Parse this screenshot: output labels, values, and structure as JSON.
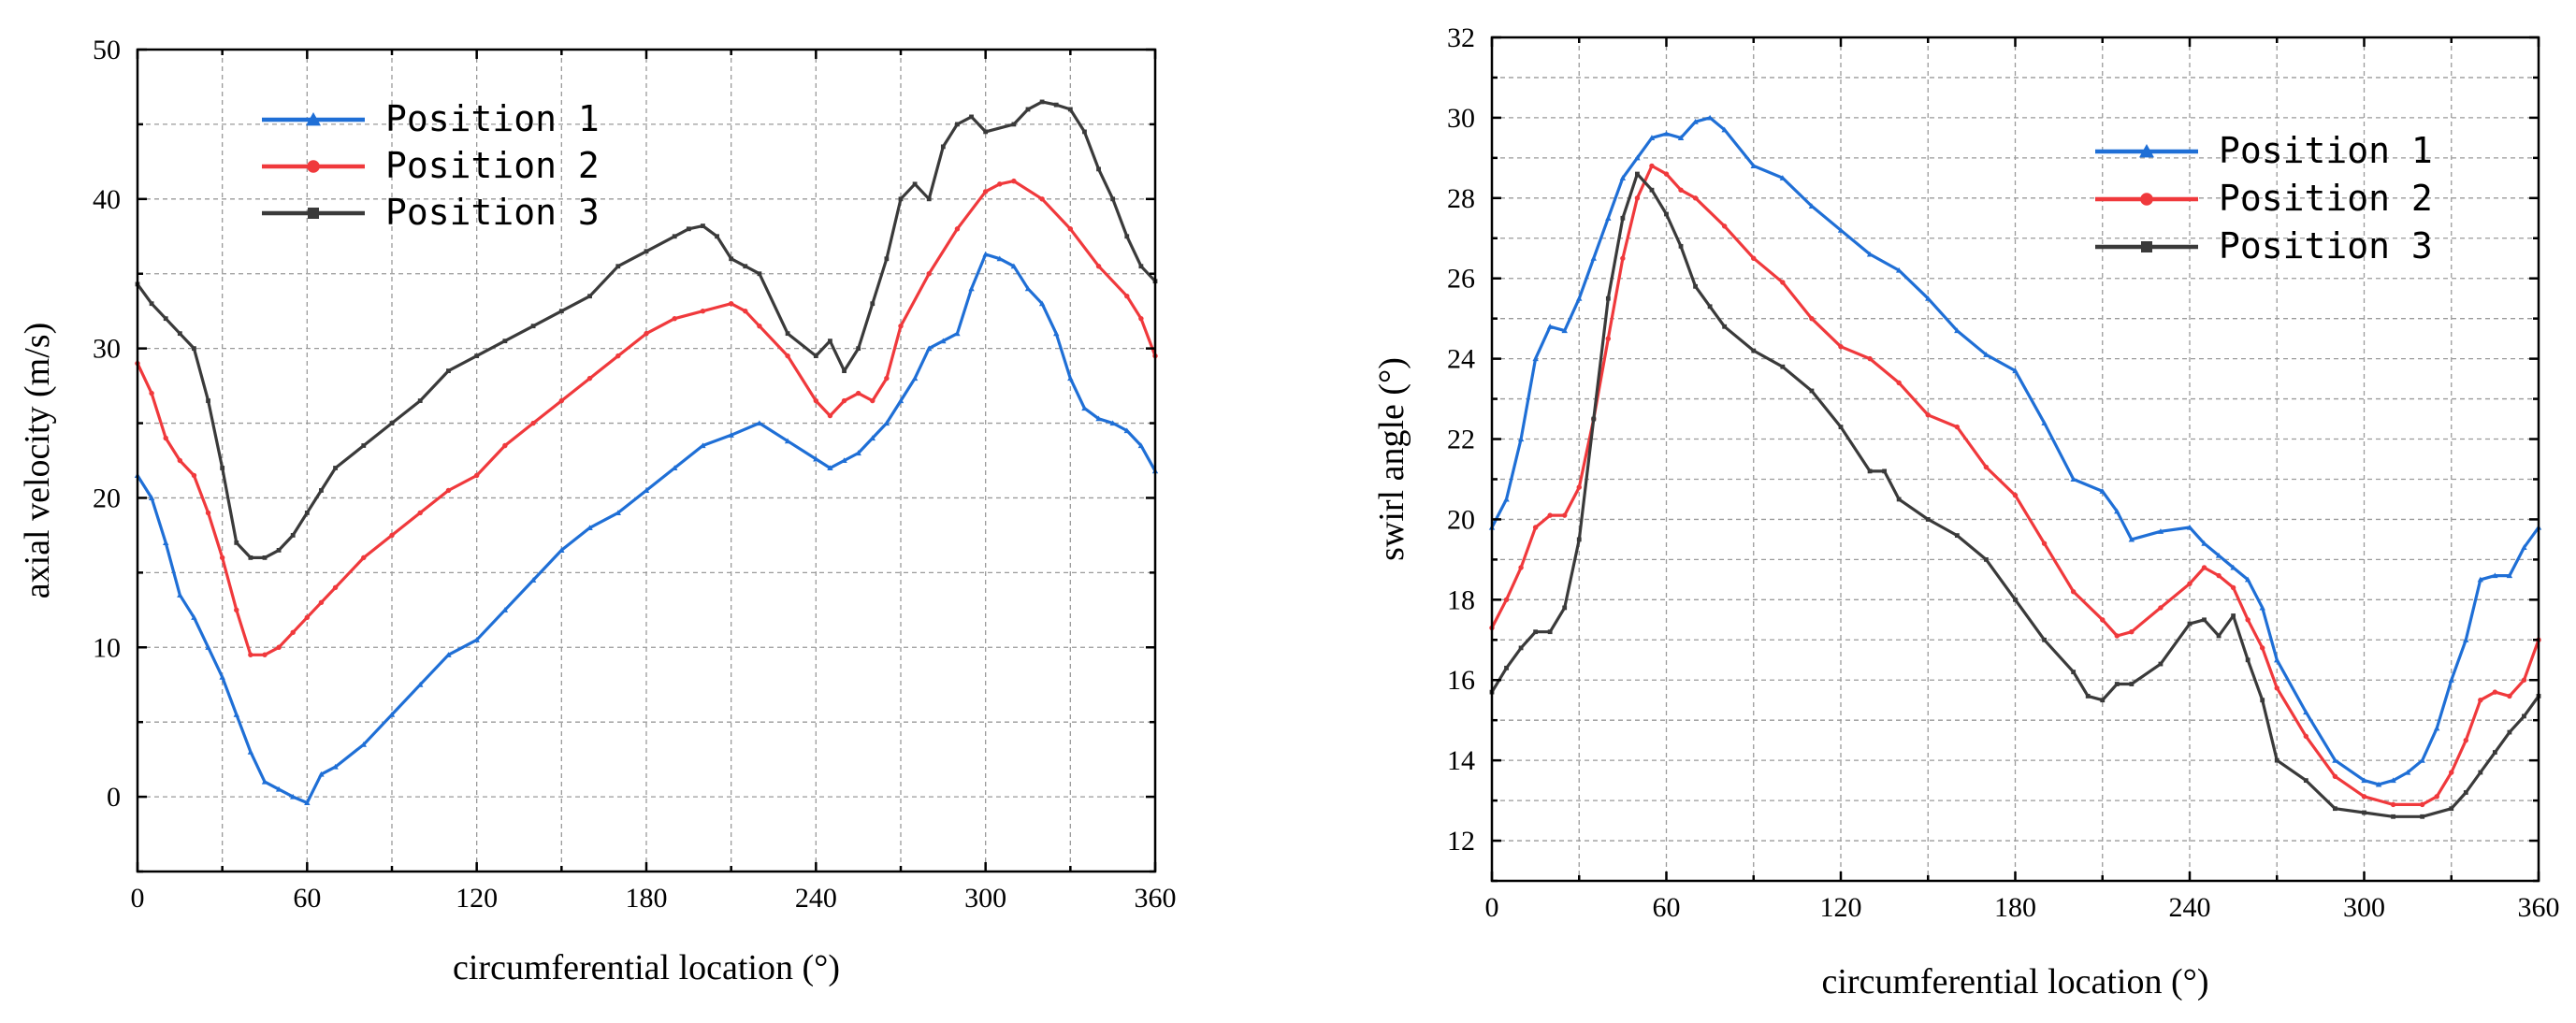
{
  "chart_data": [
    {
      "type": "line",
      "xlabel": "circumferential location (°)",
      "ylabel": "axial velocity (m/s)",
      "xlim": [
        0,
        360
      ],
      "ylim": [
        -5,
        50
      ],
      "xticks": [
        0,
        60,
        120,
        180,
        240,
        300,
        360
      ],
      "yticks": [
        0,
        10,
        20,
        30,
        40,
        50
      ],
      "x_minor_step": 30,
      "y_minor_step": 5,
      "grid": true,
      "legend_position": "top-left",
      "series": [
        {
          "name": "Position 1",
          "color": "#1f6fd6",
          "marker": "triangle",
          "x": [
            0,
            5,
            10,
            15,
            20,
            25,
            30,
            35,
            40,
            45,
            50,
            55,
            60,
            65,
            70,
            80,
            90,
            100,
            110,
            120,
            130,
            140,
            150,
            160,
            170,
            180,
            190,
            200,
            210,
            220,
            230,
            240,
            245,
            250,
            255,
            260,
            265,
            270,
            275,
            280,
            285,
            290,
            295,
            300,
            305,
            310,
            315,
            320,
            325,
            330,
            335,
            340,
            345,
            350,
            355,
            360
          ],
          "y": [
            21.5,
            20,
            17,
            13.5,
            12,
            10,
            8,
            5.5,
            3,
            1,
            0.5,
            0,
            -0.4,
            1.5,
            2,
            3.5,
            5.5,
            7.5,
            9.5,
            10.5,
            12.5,
            14.5,
            16.5,
            18,
            19,
            20.5,
            22,
            23.5,
            24.2,
            25,
            23.8,
            22.6,
            22,
            22.5,
            23,
            24,
            25,
            26.5,
            28,
            30,
            30.5,
            31,
            34,
            36.3,
            36,
            35.5,
            34,
            33,
            31,
            28,
            26,
            25.3,
            25,
            24.5,
            23.5,
            21.8
          ]
        },
        {
          "name": "Position 2",
          "color": "#f0393c",
          "marker": "circle",
          "x": [
            0,
            5,
            10,
            15,
            20,
            25,
            30,
            35,
            40,
            45,
            50,
            55,
            60,
            65,
            70,
            80,
            90,
            100,
            110,
            120,
            130,
            140,
            150,
            160,
            170,
            180,
            190,
            200,
            210,
            215,
            220,
            230,
            240,
            245,
            250,
            255,
            260,
            265,
            270,
            280,
            290,
            300,
            305,
            310,
            320,
            330,
            340,
            350,
            355,
            360
          ],
          "y": [
            29,
            27,
            24,
            22.5,
            21.5,
            19,
            16,
            12.5,
            9.5,
            9.5,
            10,
            11,
            12,
            13,
            14,
            16,
            17.5,
            19,
            20.5,
            21.5,
            23.5,
            25,
            26.5,
            28,
            29.5,
            31,
            32,
            32.5,
            33,
            32.5,
            31.5,
            29.5,
            26.5,
            25.5,
            26.5,
            27,
            26.5,
            28,
            31.5,
            35,
            38,
            40.5,
            41,
            41.2,
            40,
            38,
            35.5,
            33.5,
            32,
            29.5
          ]
        },
        {
          "name": "Position 3",
          "color": "#3a3a3a",
          "marker": "square",
          "x": [
            0,
            5,
            10,
            15,
            20,
            25,
            30,
            35,
            40,
            45,
            50,
            55,
            60,
            65,
            70,
            80,
            90,
            100,
            110,
            120,
            130,
            140,
            150,
            160,
            170,
            180,
            190,
            195,
            200,
            205,
            210,
            215,
            220,
            230,
            240,
            245,
            250,
            255,
            260,
            265,
            270,
            275,
            280,
            285,
            290,
            295,
            300,
            310,
            315,
            320,
            325,
            330,
            335,
            340,
            345,
            350,
            355,
            360
          ],
          "y": [
            34.3,
            33,
            32,
            31,
            30,
            26.5,
            22,
            17,
            16,
            16,
            16.5,
            17.5,
            19,
            20.5,
            22,
            23.5,
            25,
            26.5,
            28.5,
            29.5,
            30.5,
            31.5,
            32.5,
            33.5,
            35.5,
            36.5,
            37.5,
            38,
            38.2,
            37.5,
            36,
            35.5,
            35,
            31,
            29.5,
            30.5,
            28.5,
            30,
            33,
            36,
            40,
            41,
            40,
            43.5,
            45,
            45.5,
            44.5,
            45,
            46,
            46.5,
            46.3,
            46,
            44.5,
            42,
            40,
            37.5,
            35.5,
            34.5
          ]
        }
      ]
    },
    {
      "type": "line",
      "xlabel": "circumferential location (°)",
      "ylabel": "swirl angle (°)",
      "xlim": [
        0,
        360
      ],
      "ylim": [
        11,
        32
      ],
      "xticks": [
        0,
        60,
        120,
        180,
        240,
        300,
        360
      ],
      "yticks": [
        12,
        14,
        16,
        18,
        20,
        22,
        24,
        26,
        28,
        30,
        32
      ],
      "x_minor_step": 30,
      "y_minor_step": 1,
      "grid": true,
      "legend_position": "top-right",
      "series": [
        {
          "name": "Position 1",
          "color": "#1f6fd6",
          "marker": "triangle",
          "x": [
            0,
            5,
            10,
            15,
            20,
            25,
            30,
            35,
            40,
            45,
            50,
            55,
            60,
            65,
            70,
            75,
            80,
            90,
            100,
            110,
            120,
            130,
            140,
            150,
            160,
            170,
            180,
            190,
            200,
            210,
            215,
            220,
            230,
            240,
            245,
            250,
            255,
            260,
            265,
            270,
            280,
            290,
            300,
            305,
            310,
            315,
            320,
            325,
            330,
            335,
            340,
            345,
            350,
            355,
            360
          ],
          "y": [
            19.8,
            20.5,
            22,
            24,
            24.8,
            24.7,
            25.5,
            26.5,
            27.5,
            28.5,
            29,
            29.5,
            29.6,
            29.5,
            29.9,
            30,
            29.7,
            28.8,
            28.5,
            27.8,
            27.2,
            26.6,
            26.2,
            25.5,
            24.7,
            24.1,
            23.7,
            22.4,
            21,
            20.7,
            20.2,
            19.5,
            19.7,
            19.8,
            19.4,
            19.1,
            18.8,
            18.5,
            17.8,
            16.5,
            15.2,
            14,
            13.5,
            13.4,
            13.5,
            13.7,
            14,
            14.8,
            16,
            17,
            18.5,
            18.6,
            18.6,
            19.3,
            19.8
          ]
        },
        {
          "name": "Position 2",
          "color": "#f0393c",
          "marker": "circle",
          "x": [
            0,
            5,
            10,
            15,
            20,
            25,
            30,
            35,
            40,
            45,
            50,
            55,
            60,
            65,
            70,
            80,
            90,
            100,
            110,
            120,
            130,
            140,
            150,
            160,
            170,
            180,
            190,
            200,
            210,
            215,
            220,
            230,
            240,
            245,
            250,
            255,
            260,
            265,
            270,
            280,
            290,
            300,
            310,
            320,
            325,
            330,
            335,
            340,
            345,
            350,
            355,
            360
          ],
          "y": [
            17.3,
            18,
            18.8,
            19.8,
            20.1,
            20.1,
            20.8,
            22.5,
            24.5,
            26.5,
            28,
            28.8,
            28.6,
            28.2,
            28,
            27.3,
            26.5,
            25.9,
            25,
            24.3,
            24,
            23.4,
            22.6,
            22.3,
            21.3,
            20.6,
            19.4,
            18.2,
            17.5,
            17.1,
            17.2,
            17.8,
            18.4,
            18.8,
            18.6,
            18.3,
            17.5,
            16.8,
            15.8,
            14.6,
            13.6,
            13.1,
            12.9,
            12.9,
            13.1,
            13.7,
            14.5,
            15.5,
            15.7,
            15.6,
            16,
            17
          ]
        },
        {
          "name": "Position 3",
          "color": "#3a3a3a",
          "marker": "square",
          "x": [
            0,
            5,
            10,
            15,
            20,
            25,
            30,
            35,
            40,
            45,
            50,
            55,
            60,
            65,
            70,
            75,
            80,
            90,
            100,
            110,
            120,
            130,
            135,
            140,
            150,
            160,
            170,
            180,
            190,
            200,
            205,
            210,
            215,
            220,
            230,
            240,
            245,
            250,
            255,
            260,
            265,
            270,
            280,
            290,
            300,
            310,
            320,
            330,
            335,
            340,
            345,
            350,
            355,
            360
          ],
          "y": [
            15.7,
            16.3,
            16.8,
            17.2,
            17.2,
            17.8,
            19.5,
            22.5,
            25.5,
            27.5,
            28.6,
            28.2,
            27.6,
            26.8,
            25.8,
            25.3,
            24.8,
            24.2,
            23.8,
            23.2,
            22.3,
            21.2,
            21.2,
            20.5,
            20,
            19.6,
            19,
            18,
            17,
            16.2,
            15.6,
            15.5,
            15.9,
            15.9,
            16.4,
            17.4,
            17.5,
            17.1,
            17.6,
            16.5,
            15.5,
            14,
            13.5,
            12.8,
            12.7,
            12.6,
            12.6,
            12.8,
            13.2,
            13.7,
            14.2,
            14.7,
            15.1,
            15.6
          ]
        }
      ]
    }
  ]
}
